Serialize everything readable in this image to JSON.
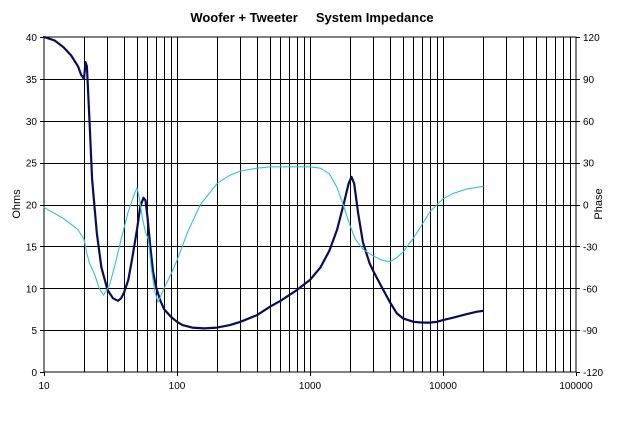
{
  "chart_data": {
    "type": "line",
    "title": "Woofer + Tweeter     System Impedance",
    "xlabel": "",
    "ylabel": "Ohms",
    "y2label": "Phase",
    "x_scale": "log",
    "xlim": [
      10,
      100000
    ],
    "ylim": [
      0,
      40
    ],
    "y2lim": [
      -120,
      120
    ],
    "grid": true,
    "x_ticks": [
      "10",
      "100",
      "1000",
      "10000",
      "100000"
    ],
    "y_ticks": [
      "0",
      "5",
      "10",
      "15",
      "20",
      "25",
      "30",
      "35",
      "40"
    ],
    "y2_ticks": [
      "-120",
      "-90",
      "-60",
      "-30",
      "0",
      "30",
      "60",
      "90",
      "120"
    ],
    "colors": {
      "impedance": "#0b0b5e",
      "phase": "#2ec4d6",
      "grid": "#000000"
    },
    "series": [
      {
        "axis": "left",
        "x": [
          10,
          12,
          14,
          16,
          18,
          19,
          20,
          20.5,
          21,
          22,
          23,
          25,
          27,
          30,
          33,
          36,
          38,
          40,
          43,
          46,
          50,
          53,
          56,
          58,
          60,
          63,
          66,
          70,
          75,
          80,
          90,
          100,
          110,
          130,
          160,
          200,
          250,
          300,
          400,
          500,
          600,
          800,
          1000,
          1200,
          1400,
          1600,
          1800,
          1950,
          2050,
          2150,
          2300,
          2500,
          2800,
          3000,
          3500,
          4000,
          4500,
          5000,
          6000,
          7000,
          8000,
          9000,
          10000,
          12000,
          15000,
          18000,
          20000
        ],
        "values": [
          40,
          39.6,
          38.8,
          37.8,
          36.5,
          35.5,
          35,
          37,
          36.5,
          30,
          23,
          16.5,
          12.5,
          9.8,
          8.8,
          8.5,
          8.8,
          9.5,
          11,
          13.5,
          17,
          19.8,
          20.8,
          20.5,
          18.5,
          15,
          12,
          10,
          8.5,
          7.5,
          6.6,
          6,
          5.6,
          5.3,
          5.2,
          5.3,
          5.6,
          6,
          6.8,
          7.8,
          8.5,
          9.8,
          11,
          12.5,
          14.5,
          17,
          20.2,
          22.5,
          23.3,
          22.5,
          19,
          15.5,
          13,
          12,
          10,
          8.3,
          7,
          6.4,
          6,
          5.9,
          5.9,
          6,
          6.2,
          6.5,
          6.9,
          7.2,
          7.3
        ]
      },
      {
        "axis": "right",
        "x": [
          10,
          14,
          18,
          20,
          21,
          22,
          24,
          26,
          28,
          31,
          34,
          38,
          43,
          48,
          50,
          52,
          55,
          58,
          61,
          64,
          68,
          72,
          80,
          90,
          100,
          120,
          150,
          200,
          250,
          300,
          400,
          500,
          600,
          700,
          800,
          1000,
          1200,
          1400,
          1600,
          1800,
          2000,
          2200,
          2500,
          3000,
          3500,
          4000,
          4500,
          5000,
          6000,
          7000,
          8000,
          10000,
          12000,
          15000,
          20000
        ],
        "values": [
          -2,
          -10,
          -18,
          -25,
          -35,
          -42,
          -50,
          -60,
          -65,
          -58,
          -44,
          -25,
          -5,
          8,
          12,
          5,
          -10,
          -20,
          -25,
          -45,
          -62,
          -70,
          -60,
          -50,
          -40,
          -20,
          0,
          15,
          21,
          24,
          26,
          27,
          27,
          27,
          27,
          27,
          26,
          22,
          12,
          -2,
          -15,
          -25,
          -32,
          -37,
          -40,
          -41,
          -38,
          -34,
          -24,
          -14,
          -5,
          4,
          8,
          11,
          13
        ]
      }
    ]
  }
}
